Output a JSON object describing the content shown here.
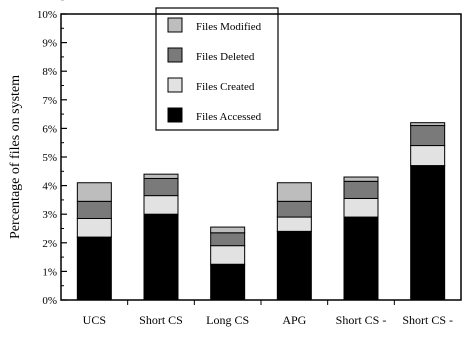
{
  "chart_data": {
    "type": "bar",
    "stacked": true,
    "title": "",
    "xlabel": "",
    "ylabel": "Percentage of files on system",
    "ylim": [
      0,
      10
    ],
    "yticks": [
      "0%",
      "1%",
      "2%",
      "3%",
      "4%",
      "5%",
      "6%",
      "7%",
      "8%",
      "9%",
      "10%"
    ],
    "categories": [
      "UCS",
      "Short CS",
      "Long CS",
      "APG",
      "Short CS -",
      "Short CS -"
    ],
    "series": [
      {
        "name": "Files Accessed",
        "color": "#000000",
        "values": [
          2.2,
          3.0,
          1.25,
          2.4,
          2.9,
          4.7
        ]
      },
      {
        "name": "Files Created",
        "color": "#e2e2e2",
        "values": [
          0.65,
          0.65,
          0.65,
          0.5,
          0.65,
          0.7
        ]
      },
      {
        "name": "Files Deleted",
        "color": "#7a7a7a",
        "values": [
          0.6,
          0.6,
          0.45,
          0.55,
          0.6,
          0.7
        ]
      },
      {
        "name": "Files Modified",
        "color": "#bdbdbd",
        "values": [
          0.65,
          0.15,
          0.2,
          0.65,
          0.15,
          0.1
        ]
      }
    ],
    "legend": {
      "placement": "top-center",
      "order": [
        "Files Modified",
        "Files Deleted",
        "Files Created",
        "Files Accessed"
      ]
    },
    "grid": false
  }
}
